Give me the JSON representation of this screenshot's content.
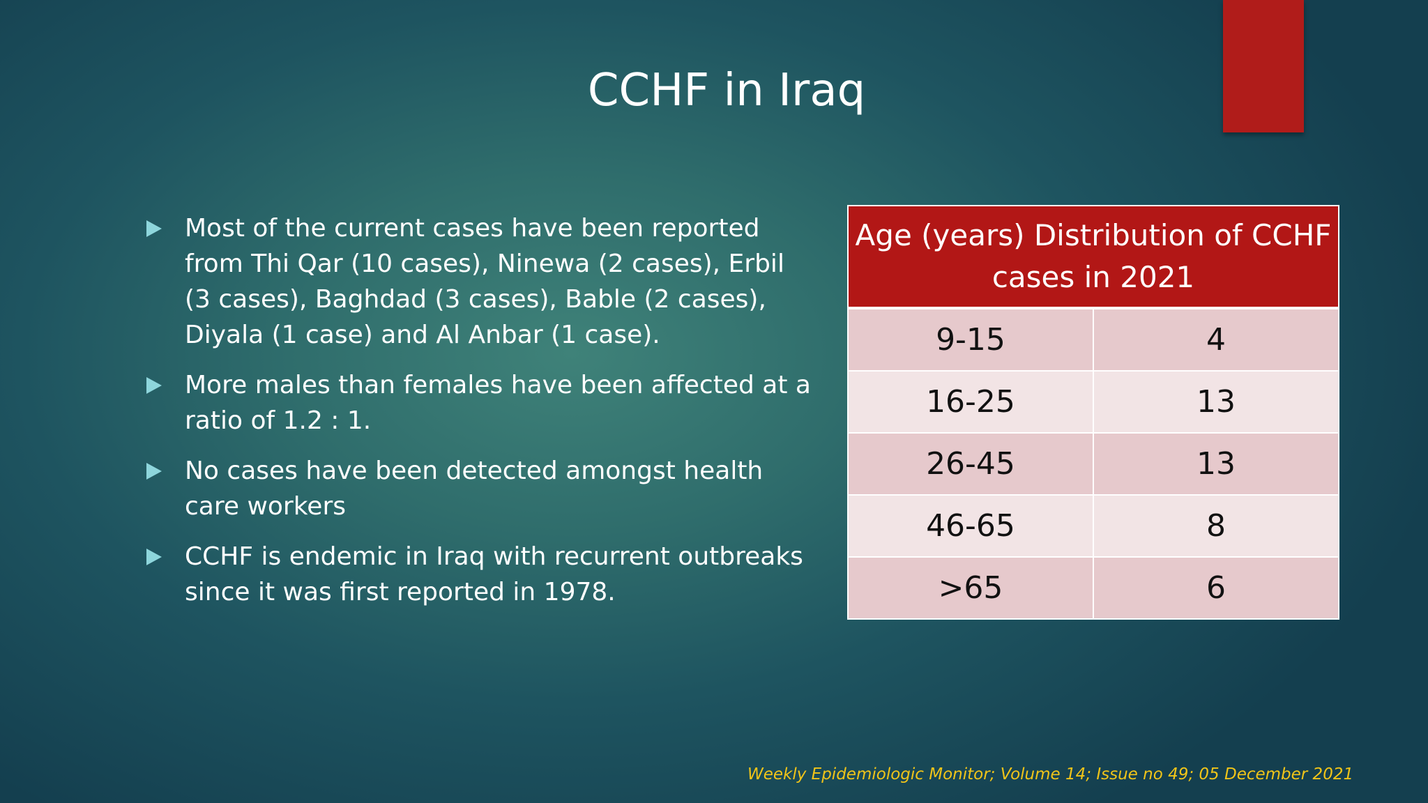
{
  "slide": {
    "title": "CCHF in Iraq",
    "bullets": [
      "Most of the current cases have been reported from Thi Qar (10 cases), Ninewa (2 cases), Erbil (3 cases), Baghdad (3 cases), Bable (2 cases), Diyala (1 case) and Al Anbar (1 case).",
      "More males than females have been affected at a ratio of 1.2 : 1.",
      "No cases have been detected amongst health care workers",
      "CCHF is endemic in Iraq with recurrent outbreaks since it was first reported in 1978."
    ],
    "table": {
      "header": "Age (years) Distribution of CCHF cases in 2021",
      "rows": [
        {
          "age": "9-15",
          "cases": "4"
        },
        {
          "age": "16-25",
          "cases": "13"
        },
        {
          "age": "26-45",
          "cases": "13"
        },
        {
          "age": "46-65",
          "cases": "8"
        },
        {
          "age": ">65",
          "cases": "6"
        }
      ]
    },
    "source": "Weekly Epidemiologic Monitor; Volume 14; Issue no 49; 05 December 2021"
  },
  "colors": {
    "accent_red": "#b01c1a",
    "table_header_red": "#b21716",
    "bullet_arrow": "#8ed6dc",
    "source_text": "#f0c419"
  },
  "icons": {
    "bullet": "triangle-right-icon"
  }
}
